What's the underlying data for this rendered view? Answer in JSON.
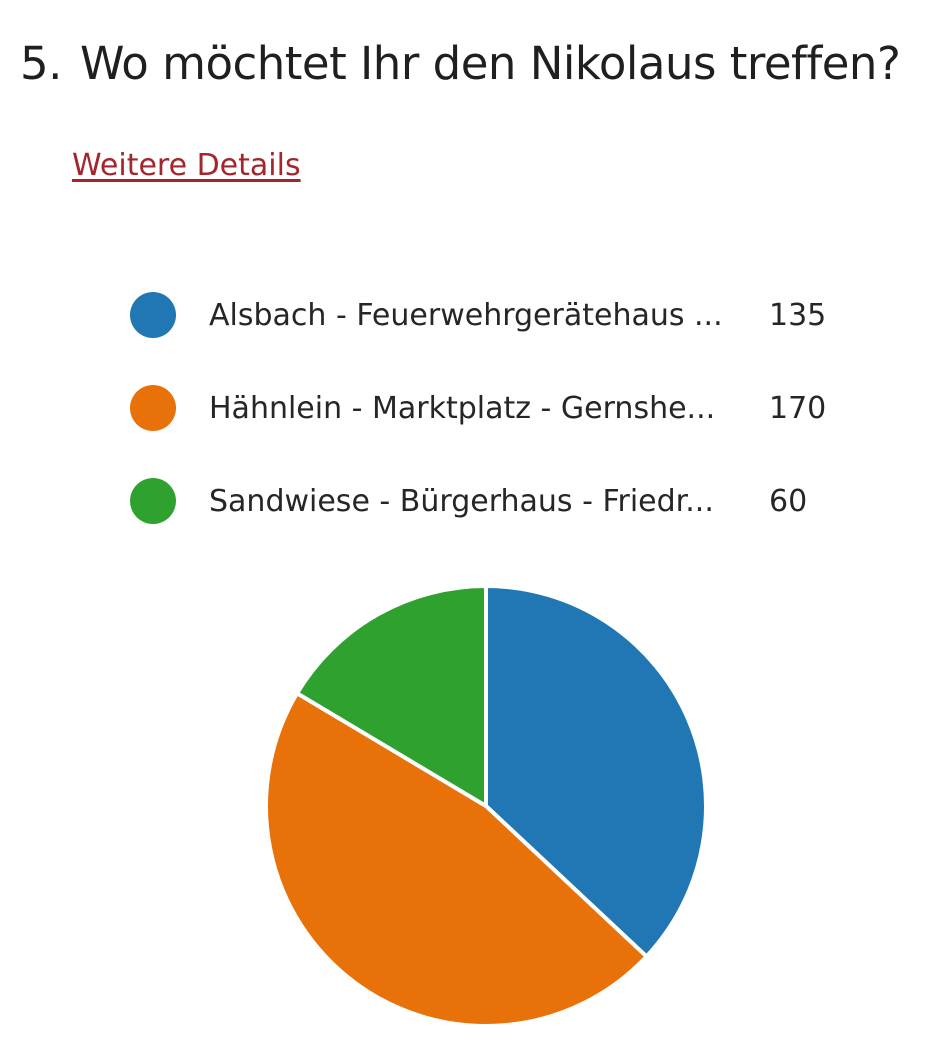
{
  "question": {
    "number": "5.",
    "text": "Wo möchtet Ihr den Nikolaus treffen?"
  },
  "details_link": "Weitere Details",
  "colors": {
    "series_1": "#2077b4",
    "series_2": "#e8710a",
    "series_3": "#2fa12f",
    "link": "#a4262c"
  },
  "legend": [
    {
      "label": "Alsbach - Feuerwehrgerätehaus ...",
      "count": "135"
    },
    {
      "label": "Hähnlein - Marktplatz - Gernshe...",
      "count": "170"
    },
    {
      "label": "Sandwiese - Bürgerhaus - Friedr...",
      "count": "60"
    }
  ],
  "chart_data": {
    "type": "pie",
    "title": "",
    "categories": [
      "Alsbach - Feuerwehrgerätehaus ...",
      "Hähnlein - Marktplatz - Gernshe...",
      "Sandwiese - Bürgerhaus - Friedr..."
    ],
    "values": [
      135,
      170,
      60
    ],
    "colors": [
      "#2077b4",
      "#e8710a",
      "#2fa12f"
    ],
    "legend_position": "top"
  }
}
